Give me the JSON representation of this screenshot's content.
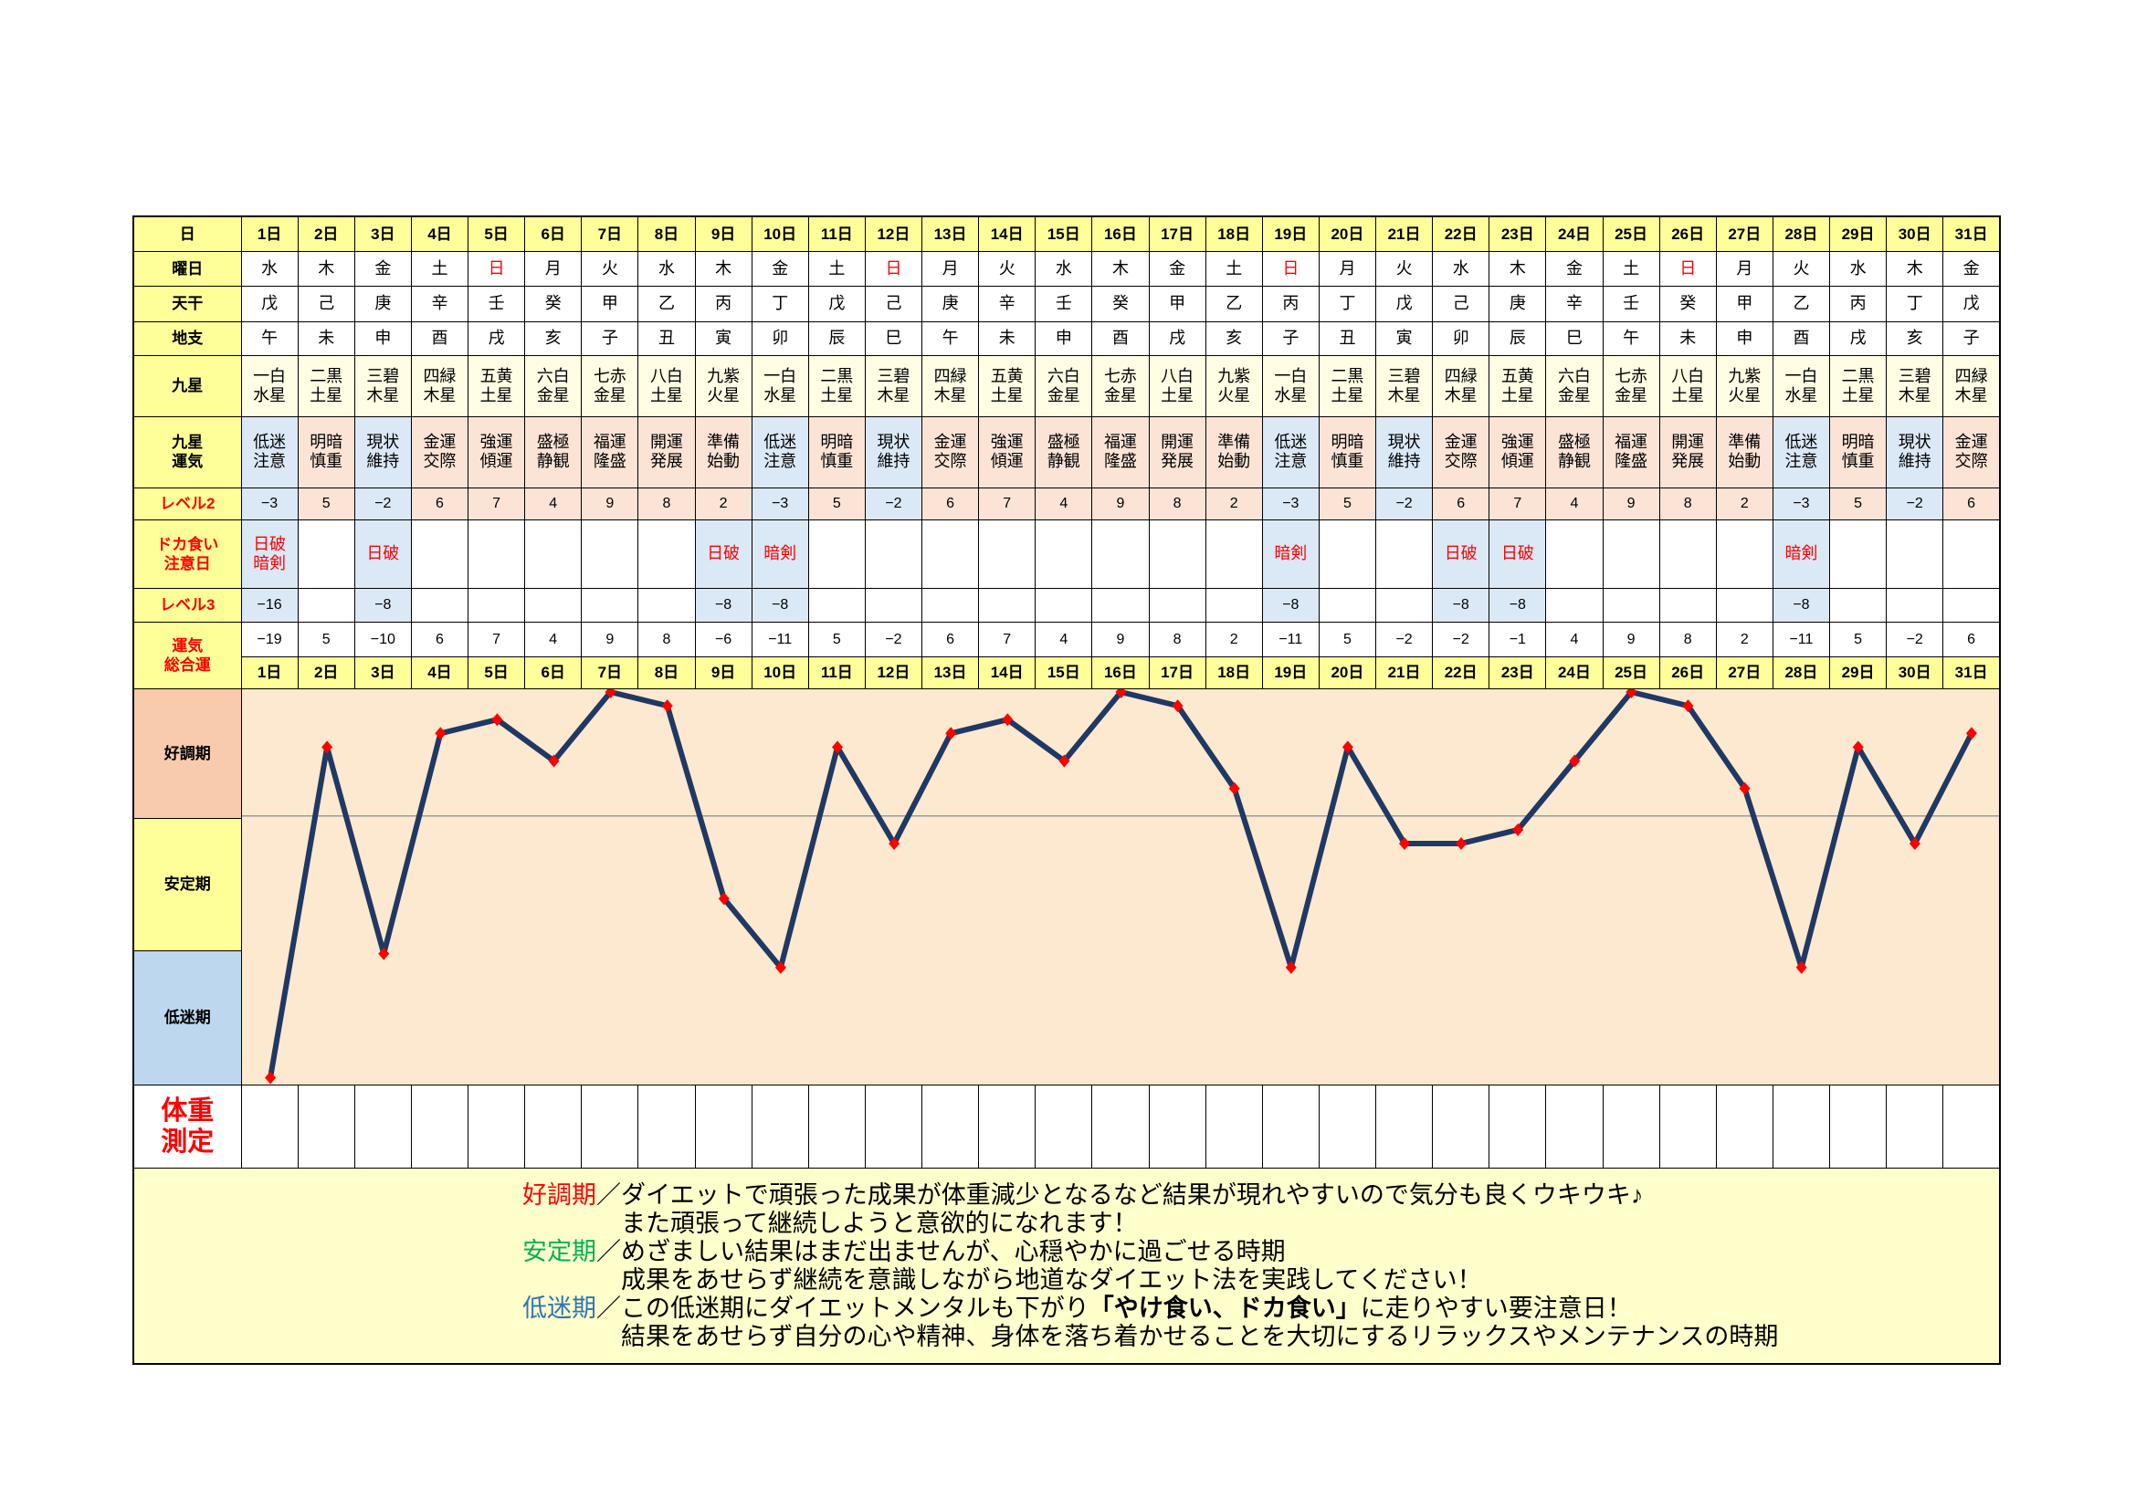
{
  "colors": {
    "yellow": "#ffff99",
    "cream": "#fffde4",
    "pink": "#fbe3d6",
    "blue": "#dbe8f6",
    "chart": "#fde9cf",
    "good": "#f8cbad",
    "stable": "#ffff99",
    "low": "#bdd7ee",
    "notes": "#ffffcc",
    "red": "#ff0000",
    "green": "#00b050",
    "lowtext": "#2e75b6"
  },
  "table": {
    "labels": {
      "day": "日",
      "weekday": "曜日",
      "stem": "天干",
      "branch": "地支",
      "star": "九星",
      "fortune": "九星\n運気",
      "level2": "レベル2",
      "doka": "ドカ食い\n注意日",
      "level3": "レベル3",
      "total": "運気\n総合運",
      "weight": "体重\n測定"
    },
    "days": [
      "1日",
      "2日",
      "3日",
      "4日",
      "5日",
      "6日",
      "7日",
      "8日",
      "9日",
      "10日",
      "11日",
      "12日",
      "13日",
      "14日",
      "15日",
      "16日",
      "17日",
      "18日",
      "19日",
      "20日",
      "21日",
      "22日",
      "23日",
      "24日",
      "25日",
      "26日",
      "27日",
      "28日",
      "29日",
      "30日",
      "31日"
    ],
    "weekdays": [
      "水",
      "木",
      "金",
      "土",
      "日",
      "月",
      "火",
      "水",
      "木",
      "金",
      "土",
      "日",
      "月",
      "火",
      "水",
      "木",
      "金",
      "土",
      "日",
      "月",
      "火",
      "水",
      "木",
      "金",
      "土",
      "日",
      "月",
      "火",
      "水",
      "木",
      "金"
    ],
    "stems": [
      "戊",
      "己",
      "庚",
      "辛",
      "壬",
      "癸",
      "甲",
      "乙",
      "丙",
      "丁",
      "戊",
      "己",
      "庚",
      "辛",
      "壬",
      "癸",
      "甲",
      "乙",
      "丙",
      "丁",
      "戊",
      "己",
      "庚",
      "辛",
      "壬",
      "癸",
      "甲",
      "乙",
      "丙",
      "丁",
      "戊"
    ],
    "branches": [
      "午",
      "未",
      "申",
      "酉",
      "戌",
      "亥",
      "子",
      "丑",
      "寅",
      "卯",
      "辰",
      "巳",
      "午",
      "未",
      "申",
      "酉",
      "戌",
      "亥",
      "子",
      "丑",
      "寅",
      "卯",
      "辰",
      "巳",
      "午",
      "未",
      "申",
      "酉",
      "戌",
      "亥",
      "子"
    ],
    "stars": [
      "一白\n水星",
      "二黒\n土星",
      "三碧\n木星",
      "四緑\n木星",
      "五黄\n土星",
      "六白\n金星",
      "七赤\n金星",
      "八白\n土星",
      "九紫\n火星",
      "一白\n水星",
      "二黒\n土星",
      "三碧\n木星",
      "四緑\n木星",
      "五黄\n土星",
      "六白\n金星",
      "七赤\n金星",
      "八白\n土星",
      "九紫\n火星",
      "一白\n水星",
      "二黒\n土星",
      "三碧\n木星",
      "四緑\n木星",
      "五黄\n土星",
      "六白\n金星",
      "七赤\n金星",
      "八白\n土星",
      "九紫\n火星",
      "一白\n水星",
      "二黒\n土星",
      "三碧\n木星",
      "四緑\n木星"
    ],
    "fortunes": [
      "低迷\n注意",
      "明暗\n慎重",
      "現状\n維持",
      "金運\n交際",
      "強運\n傾運",
      "盛極\n静観",
      "福運\n隆盛",
      "開運\n発展",
      "準備\n始動",
      "低迷\n注意",
      "明暗\n慎重",
      "現状\n維持",
      "金運\n交際",
      "強運\n傾運",
      "盛極\n静観",
      "福運\n隆盛",
      "開運\n発展",
      "準備\n始動",
      "低迷\n注意",
      "明暗\n慎重",
      "現状\n維持",
      "金運\n交際",
      "強運\n傾運",
      "盛極\n静観",
      "福運\n隆盛",
      "開運\n発展",
      "準備\n始動",
      "低迷\n注意",
      "明暗\n慎重",
      "現状\n維持",
      "金運\n交際"
    ],
    "level2": [
      "−3",
      "5",
      "−2",
      "6",
      "7",
      "4",
      "9",
      "8",
      "2",
      "−3",
      "5",
      "−2",
      "6",
      "7",
      "4",
      "9",
      "8",
      "2",
      "−3",
      "5",
      "−2",
      "6",
      "7",
      "4",
      "9",
      "8",
      "2",
      "−3",
      "5",
      "−2",
      "6"
    ],
    "doka": [
      "日破\n暗剣",
      "",
      "日破",
      "",
      "",
      "",
      "",
      "",
      "日破",
      "暗剣",
      "",
      "",
      "",
      "",
      "",
      "",
      "",
      "",
      "暗剣",
      "",
      "",
      "日破",
      "日破",
      "",
      "",
      "",
      "",
      "暗剣",
      "",
      "",
      ""
    ],
    "level3": [
      "−16",
      "",
      "−8",
      "",
      "",
      "",
      "",
      "",
      "−8",
      "−8",
      "",
      "",
      "",
      "",
      "",
      "",
      "",
      "",
      "−8",
      "",
      "",
      "−8",
      "−8",
      "",
      "",
      "",
      "",
      "−8",
      "",
      "",
      ""
    ],
    "total": [
      "−19",
      "5",
      "−10",
      "6",
      "7",
      "4",
      "9",
      "8",
      "−6",
      "−11",
      "5",
      "−2",
      "6",
      "7",
      "4",
      "9",
      "8",
      "2",
      "−11",
      "5",
      "−2",
      "−2",
      "−1",
      "4",
      "9",
      "8",
      "2",
      "−11",
      "5",
      "−2",
      "6"
    ]
  },
  "chart_data": {
    "type": "line",
    "categories": [
      "1日",
      "2日",
      "3日",
      "4日",
      "5日",
      "6日",
      "7日",
      "8日",
      "9日",
      "10日",
      "11日",
      "12日",
      "13日",
      "14日",
      "15日",
      "16日",
      "17日",
      "18日",
      "19日",
      "20日",
      "21日",
      "22日",
      "23日",
      "24日",
      "25日",
      "26日",
      "27日",
      "28日",
      "29日",
      "30日",
      "31日"
    ],
    "values": [
      -19,
      5,
      -10,
      6,
      7,
      4,
      9,
      8,
      -6,
      -11,
      5,
      -2,
      6,
      7,
      4,
      9,
      8,
      2,
      -11,
      5,
      -2,
      -2,
      -1,
      4,
      9,
      8,
      2,
      -11,
      5,
      -2,
      6
    ],
    "ylim": [
      -19.5,
      9.2
    ],
    "baseline": 0,
    "grid": false,
    "bands": {
      "good": "好調期",
      "stable": "安定期",
      "low": "低迷期"
    },
    "line_color": "#1f3864",
    "marker_color": "#ff0000",
    "baseline_color": "#9a9a9a"
  },
  "notes": {
    "good": {
      "label": "好調期",
      "text": "／ダイエットで頑張った成果が体重減少となるなど結果が現れやすいので気分も良くウキウキ♪",
      "cont": "また頑張って継続しようと意欲的になれます！"
    },
    "stable": {
      "label": "安定期",
      "text": "／めざましい結果はまだ出ませんが、心穏やかに過ごせる時期",
      "cont": "成果をあせらず継続を意識しながら地道なダイエット法を実践してください！"
    },
    "low": {
      "label": "低迷期",
      "text_a": "／この低迷期にダイエットメンタルも下がり",
      "emph": "「やけ食い、ドカ食い」",
      "text_b": "に走りやすい要注意日！",
      "cont": "結果をあせらず自分の心や精神、身体を落ち着かせることを大切にするリラックスやメンテナンスの時期"
    }
  }
}
